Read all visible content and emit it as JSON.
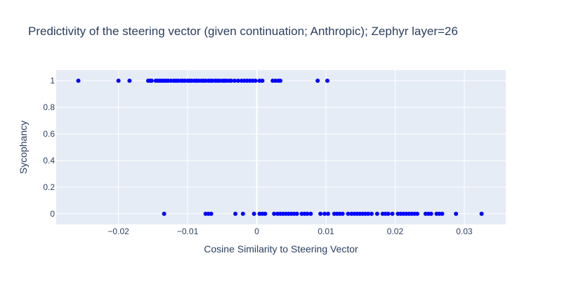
{
  "chart_data": {
    "type": "scatter",
    "title": "Predictivity of the steering vector (given continuation; Anthropic); Zephyr layer=26",
    "xlabel": "Cosine Similarity to Steering Vector",
    "ylabel": "Sycophancy",
    "xlim": [
      -0.029,
      0.036
    ],
    "ylim": [
      -0.08,
      1.08
    ],
    "xticks": [
      -0.02,
      -0.01,
      0,
      0.01,
      0.02,
      0.03
    ],
    "xtick_labels": [
      "−0.02",
      "−0.01",
      "0",
      "0.01",
      "0.02",
      "0.03"
    ],
    "yticks": [
      0,
      0.2,
      0.4,
      0.6,
      0.8,
      1
    ],
    "ytick_labels": [
      "0",
      "0.2",
      "0.4",
      "0.6",
      "0.8",
      "1"
    ],
    "grid": true,
    "legend": "none",
    "marker_color": "#0000ff",
    "plot_background": "#e5ecf6",
    "series": [
      {
        "x": [
          -0.0258,
          -0.02,
          -0.0184,
          -0.0157,
          -0.0154,
          -0.0152,
          -0.0146,
          -0.0143,
          -0.014,
          -0.0137,
          -0.0134,
          -0.0131,
          -0.0128,
          -0.0124,
          -0.012,
          -0.0117,
          -0.0114,
          -0.011,
          -0.0107,
          -0.0104,
          -0.01,
          -0.0097,
          -0.0094,
          -0.009,
          -0.0087,
          -0.0084,
          -0.008,
          -0.0077,
          -0.0074,
          -0.007,
          -0.0067,
          -0.0064,
          -0.006,
          -0.0057,
          -0.0054,
          -0.005,
          -0.0047,
          -0.0044,
          -0.004,
          -0.0037,
          -0.0032,
          -0.0027,
          -0.0022,
          -0.0018,
          -0.0014,
          -0.001,
          -0.0006,
          -0.0002,
          0.0004,
          0.0008,
          0.0023,
          0.0027,
          0.0031,
          0.0034,
          0.0088,
          0.0102
        ],
        "y": [
          1,
          1,
          1,
          1,
          1,
          1,
          1,
          1,
          1,
          1,
          1,
          1,
          1,
          1,
          1,
          1,
          1,
          1,
          1,
          1,
          1,
          1,
          1,
          1,
          1,
          1,
          1,
          1,
          1,
          1,
          1,
          1,
          1,
          1,
          1,
          1,
          1,
          1,
          1,
          1,
          1,
          1,
          1,
          1,
          1,
          1,
          1,
          1,
          1,
          1,
          1,
          1,
          1,
          1,
          1,
          1
        ]
      },
      {
        "x": [
          -0.0134,
          -0.0074,
          -0.007,
          -0.0066,
          -0.0031,
          -0.002,
          -0.0004,
          0.0004,
          0.0008,
          0.0012,
          0.0025,
          0.003,
          0.0034,
          0.0038,
          0.0042,
          0.0046,
          0.005,
          0.0054,
          0.0058,
          0.0065,
          0.0069,
          0.0073,
          0.0078,
          0.0092,
          0.0098,
          0.0103,
          0.0112,
          0.0116,
          0.012,
          0.0124,
          0.0132,
          0.0137,
          0.0141,
          0.0145,
          0.0149,
          0.0153,
          0.0157,
          0.0161,
          0.0166,
          0.0174,
          0.0182,
          0.0186,
          0.019,
          0.0196,
          0.0204,
          0.0208,
          0.0212,
          0.0216,
          0.022,
          0.0224,
          0.0228,
          0.0232,
          0.0244,
          0.0248,
          0.0252,
          0.026,
          0.0264,
          0.0268,
          0.0288,
          0.0325
        ],
        "y": [
          0,
          0,
          0,
          0,
          0,
          0,
          0,
          0,
          0,
          0,
          0,
          0,
          0,
          0,
          0,
          0,
          0,
          0,
          0,
          0,
          0,
          0,
          0,
          0,
          0,
          0,
          0,
          0,
          0,
          0,
          0,
          0,
          0,
          0,
          0,
          0,
          0,
          0,
          0,
          0,
          0,
          0,
          0,
          0,
          0,
          0,
          0,
          0,
          0,
          0,
          0,
          0,
          0,
          0,
          0,
          0,
          0,
          0,
          0,
          0
        ]
      }
    ]
  }
}
